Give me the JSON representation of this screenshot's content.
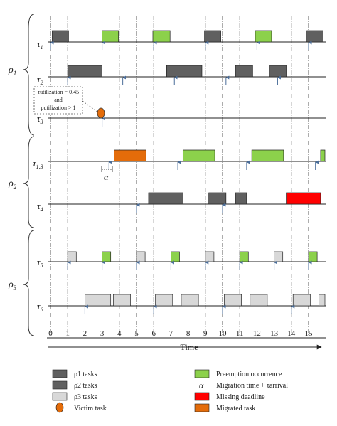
{
  "groups": [
    {
      "label": "ρ",
      "sub": "1"
    },
    {
      "label": "ρ",
      "sub": "2"
    },
    {
      "label": "ρ",
      "sub": "3"
    }
  ],
  "rows": [
    {
      "label": "τ",
      "sub": "1"
    },
    {
      "label": "τ",
      "sub": "2"
    },
    {
      "label": "τ",
      "sub": "3"
    },
    {
      "label": "τ",
      "sub": "1,3"
    },
    {
      "label": "τ",
      "sub": "4"
    },
    {
      "label": "τ",
      "sub": "5"
    },
    {
      "label": "τ",
      "sub": "6"
    }
  ],
  "axis": {
    "ticks": [
      "0",
      "1",
      "2",
      "3",
      "4",
      "5",
      "6",
      "7",
      "8",
      "9",
      "10",
      "11",
      "12",
      "13",
      "14",
      "15"
    ],
    "label": "Time"
  },
  "annotation": {
    "line1": "τutilization = 0.45",
    "line2": "and",
    "line3": "ρutilization > 1"
  },
  "alpha_label": "α",
  "colors": {
    "p1": "#606060",
    "p2": "#606060",
    "p3": "#d8d8d8",
    "preemption": "#8cd14b",
    "missing": "#ff0000",
    "migrated": "#e46c0a",
    "victim": "#e46c0a",
    "arrow": "#4a6d99"
  },
  "legend": {
    "p1": "ρ1 tasks",
    "p2": "ρ2 tasks",
    "p3": "ρ3 tasks",
    "victim": "Victim task",
    "preemption": "Preemption occurrence",
    "migration": "Migration time + τarrival",
    "missing": "Missing deadline",
    "migrated": "Migrated task"
  }
}
